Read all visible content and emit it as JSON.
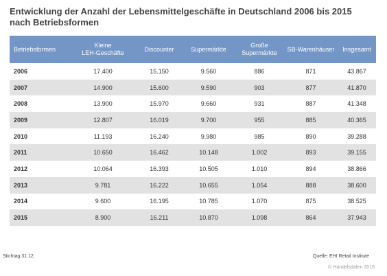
{
  "title": "Entwicklung der Anzahl der Lebensmittelgeschäfte in Deutschland 2006 bis 2015 nach Betriebsformen",
  "table": {
    "headers": [
      "Betriebsformen",
      "Kleine\nLEH-Geschäfte",
      "Discounter",
      "Supermärkte",
      "Große\nSupermärkte",
      "SB-Warenhäuser",
      "Insgesamt"
    ],
    "rows": [
      [
        "2006",
        "17.400",
        "15.150",
        "9.560",
        "886",
        "871",
        "43.867"
      ],
      [
        "2007",
        "14.900",
        "15.600",
        "9.590",
        "903",
        "877",
        "41.870"
      ],
      [
        "2008",
        "13.900",
        "15.970",
        "9.660",
        "931",
        "887",
        "41.348"
      ],
      [
        "2009",
        "12.807",
        "16.019",
        "9.700",
        "955",
        "885",
        "40.365"
      ],
      [
        "2010",
        "11.193",
        "16.240",
        "9.980",
        "985",
        "890",
        "39.288"
      ],
      [
        "2011",
        "10.650",
        "16.462",
        "10.148",
        "1.002",
        "893",
        "39.155"
      ],
      [
        "2012",
        "10.064",
        "16.393",
        "10.505",
        "1.010",
        "894",
        "38.866"
      ],
      [
        "2013",
        "9.781",
        "16.222",
        "10.655",
        "1.054",
        "888",
        "38.600"
      ],
      [
        "2014",
        "9.600",
        "16.195",
        "10.785",
        "1.070",
        "875",
        "38.525"
      ],
      [
        "2015",
        "8.900",
        "16.211",
        "10.870",
        "1.098",
        "864",
        "37.943"
      ]
    ]
  },
  "footer": {
    "note": "Stichtag 31.12.",
    "source": "Quelle: EHI Retail Institute",
    "copyright": "© Handelsdaten 2016"
  },
  "colors": {
    "header_bg": "#7396c6",
    "stripe_bg": "#e2e2e2"
  }
}
